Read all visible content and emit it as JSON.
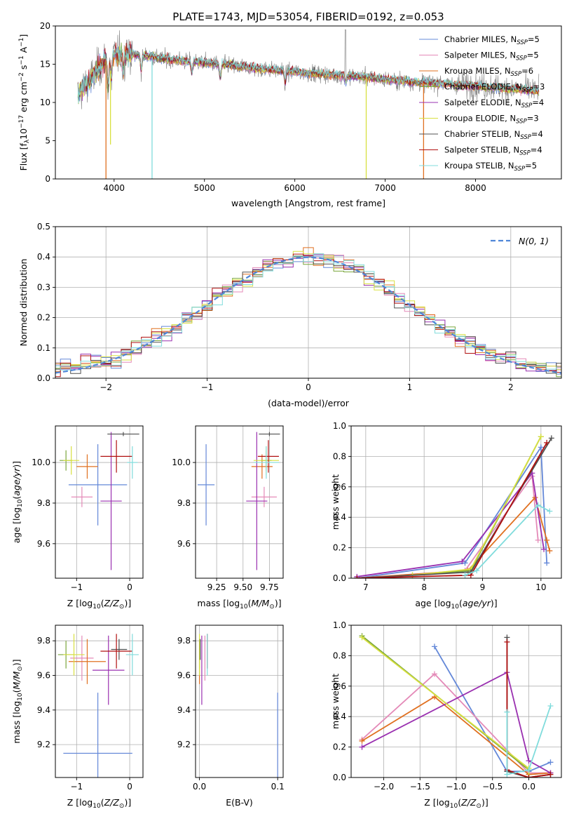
{
  "figure": {
    "title": "PLATE=1743, MJD=53054, FIBERID=0192, z=0.053"
  },
  "colors": {
    "chabrier_miles": "#6488d8",
    "salpeter_miles": "#e48ab8",
    "kroupa_miles": "#e07020",
    "chabrier_elodie": "#7aa63c",
    "salpeter_elodie": "#9a30b0",
    "kroupa_elodie": "#d8e040",
    "chabrier_stelib": "#505050",
    "salpeter_stelib": "#b01010",
    "kroupa_stelib": "#80dcdc",
    "data_spectrum": "#888888",
    "normal_curve": "#4f86d8"
  },
  "legend_spectrum": [
    {
      "text": "Chabrier MILES, N",
      "sub": "SSP",
      "tail": "=5",
      "color_key": "chabrier_miles"
    },
    {
      "text": "Salpeter MILES, N",
      "sub": "SSP",
      "tail": "=5",
      "color_key": "salpeter_miles"
    },
    {
      "text": "Kroupa MILES, N",
      "sub": "SSP",
      "tail": "=6",
      "color_key": "kroupa_miles"
    },
    {
      "text": "Chabrier ELODIE, N",
      "sub": "SSP",
      "tail": "=3",
      "color_key": "chabrier_elodie"
    },
    {
      "text": "Salpeter ELODIE, N",
      "sub": "SSP",
      "tail": "=4",
      "color_key": "salpeter_elodie"
    },
    {
      "text": "Kroupa ELODIE, N",
      "sub": "SSP",
      "tail": "=3",
      "color_key": "kroupa_elodie"
    },
    {
      "text": "Chabrier STELIB, N",
      "sub": "SSP",
      "tail": "=4",
      "color_key": "chabrier_stelib"
    },
    {
      "text": "Salpeter STELIB, N",
      "sub": "SSP",
      "tail": "=4",
      "color_key": "salpeter_stelib"
    },
    {
      "text": "Kroupa STELIB, N",
      "sub": "SSP",
      "tail": "=5",
      "color_key": "kroupa_stelib"
    }
  ],
  "chart_data": [
    {
      "id": "spectrum",
      "type": "line",
      "title": "PLATE=1743, MJD=53054, FIBERID=0192, z=0.053",
      "xlabel": "wavelength [Angstrom, rest frame]",
      "ylabel": "Flux [f_λ 10^-17 erg cm^-2 s^-1 A^-1]",
      "xlim": [
        3350,
        8950
      ],
      "ylim": [
        0,
        20
      ],
      "xticks": [
        4000,
        5000,
        6000,
        7000,
        8000
      ],
      "yticks": [
        0,
        5,
        10,
        15,
        20
      ],
      "legend_position": "upper right",
      "continuum": {
        "x": [
          3600,
          3700,
          3800,
          3900,
          4000,
          4200,
          4400,
          4600,
          4800,
          5000,
          5200,
          5400,
          5600,
          5800,
          6000,
          6200,
          6400,
          6600,
          6800,
          7000,
          7200,
          7400,
          7600,
          7800,
          8000,
          8200,
          8400,
          8600,
          8700
        ],
        "y": [
          11.0,
          12.5,
          14.0,
          15.5,
          16.2,
          16.3,
          16.0,
          15.6,
          15.4,
          15.2,
          15.0,
          14.7,
          14.4,
          14.2,
          14.0,
          13.8,
          13.6,
          13.5,
          13.3,
          13.0,
          12.8,
          12.6,
          12.5,
          12.3,
          12.2,
          12.0,
          11.8,
          11.6,
          11.5
        ]
      },
      "absorption_features": [
        {
          "x": 3934,
          "depth": 4.0
        },
        {
          "x": 3969,
          "depth": 3.0
        },
        {
          "x": 4102,
          "depth": 2.0
        },
        {
          "x": 4300,
          "depth": 2.0
        },
        {
          "x": 4861,
          "depth": 1.5
        },
        {
          "x": 5175,
          "depth": 2.0
        },
        {
          "x": 5893,
          "depth": 1.5
        },
        {
          "x": 6563,
          "depth": 1.0
        }
      ],
      "glitches": [
        {
          "x": 3910,
          "to": 0,
          "series": "kroupa_miles"
        },
        {
          "x": 3960,
          "to": 4.5,
          "series": "kroupa_elodie"
        },
        {
          "x": 4420,
          "to": 0,
          "series": "kroupa_stelib"
        },
        {
          "x": 6790,
          "to": 0,
          "series": "kroupa_elodie"
        },
        {
          "x": 7425,
          "to": 0,
          "series": "kroupa_miles"
        }
      ]
    },
    {
      "id": "residuals",
      "type": "step",
      "xlabel": "(data-model)/error",
      "ylabel": "Normed distribution",
      "xlim": [
        -2.5,
        2.5
      ],
      "ylim": [
        0,
        0.5
      ],
      "xticks": [
        -2,
        -1,
        0,
        1,
        2
      ],
      "xtick_labels": [
        "−2",
        "−1",
        "0",
        "1",
        "2"
      ],
      "yticks": [
        0.0,
        0.1,
        0.2,
        0.3,
        0.4,
        0.5
      ],
      "ytick_labels": [
        "0.0",
        "0.1",
        "0.2",
        "0.3",
        "0.4",
        "0.5"
      ],
      "bin_width": 0.1,
      "legend": [
        {
          "label": "N(0,1)",
          "color_key": "normal_curve",
          "style": "dashed"
        }
      ],
      "gaussian": {
        "mean": 0,
        "sigma": 1
      }
    },
    {
      "id": "age_vs_Z",
      "type": "errorbar",
      "xlabel": "Z [log10(Z/Z☉)]",
      "ylabel": "age [log10(age/yr)]",
      "xlim": [
        -1.4,
        0.25
      ],
      "ylim": [
        9.43,
        10.18
      ],
      "xticks": [
        -1,
        0
      ],
      "xtick_labels": [
        "−1",
        "0"
      ],
      "yticks": [
        9.6,
        9.8,
        10.0
      ],
      "ytick_labels": [
        "9.6",
        "9.8",
        "10.0"
      ],
      "points": [
        {
          "series": "chabrier_miles",
          "x": -0.6,
          "xerr": 0.55,
          "y": 9.89,
          "yerr": 0.2
        },
        {
          "series": "salpeter_miles",
          "x": -0.9,
          "xerr": 0.2,
          "y": 9.83,
          "yerr": 0.05
        },
        {
          "series": "kroupa_miles",
          "x": -0.8,
          "xerr": 0.2,
          "y": 9.98,
          "yerr": 0.06
        },
        {
          "series": "chabrier_elodie",
          "x": -1.2,
          "xerr": 0.12,
          "y": 10.01,
          "yerr": 0.05
        },
        {
          "series": "salpeter_elodie",
          "x": -0.35,
          "xerr": 0.2,
          "y": 9.81,
          "yerr": 0.34
        },
        {
          "series": "kroupa_elodie",
          "x": -1.1,
          "xerr": 0.15,
          "y": 10.01,
          "yerr": 0.07
        },
        {
          "series": "chabrier_stelib",
          "x": -0.12,
          "xerr": 0.3,
          "y": 10.14,
          "yerr": 0.01
        },
        {
          "series": "salpeter_stelib",
          "x": -0.25,
          "xerr": 0.3,
          "y": 10.03,
          "yerr": 0.08
        },
        {
          "series": "kroupa_stelib",
          "x": 0.05,
          "xerr": 0.1,
          "y": 10.0,
          "yerr": 0.08
        }
      ]
    },
    {
      "id": "age_vs_mass",
      "type": "errorbar",
      "xlabel": "mass [log10(M/M☉)]",
      "ylabel": "",
      "xlim": [
        9.05,
        9.88
      ],
      "ylim": [
        9.43,
        10.18
      ],
      "xticks": [
        9.25,
        9.5,
        9.75
      ],
      "xtick_labels": [
        "9.25",
        "9.50",
        "9.75"
      ],
      "yticks": [
        9.6,
        9.8,
        10.0
      ],
      "ytick_labels": [
        "9.6",
        "9.8",
        "10.0"
      ],
      "points": [
        {
          "series": "chabrier_miles",
          "x": 9.15,
          "xerr": 0.08,
          "y": 9.89,
          "yerr": 0.2
        },
        {
          "series": "salpeter_miles",
          "x": 9.7,
          "xerr": 0.12,
          "y": 9.83,
          "yerr": 0.05
        },
        {
          "series": "kroupa_miles",
          "x": 9.68,
          "xerr": 0.1,
          "y": 9.98,
          "yerr": 0.06
        },
        {
          "series": "chabrier_elodie",
          "x": 9.72,
          "xerr": 0.05,
          "y": 10.01,
          "yerr": 0.05
        },
        {
          "series": "salpeter_elodie",
          "x": 9.63,
          "xerr": 0.1,
          "y": 9.81,
          "yerr": 0.34
        },
        {
          "series": "kroupa_elodie",
          "x": 9.72,
          "xerr": 0.12,
          "y": 10.01,
          "yerr": 0.07
        },
        {
          "series": "chabrier_stelib",
          "x": 9.75,
          "xerr": 0.1,
          "y": 10.14,
          "yerr": 0.01
        },
        {
          "series": "salpeter_stelib",
          "x": 9.74,
          "xerr": 0.1,
          "y": 10.03,
          "yerr": 0.08
        },
        {
          "series": "kroupa_stelib",
          "x": 9.72,
          "xerr": 0.12,
          "y": 10.0,
          "yerr": 0.08
        }
      ]
    },
    {
      "id": "mass_weight_vs_age",
      "type": "line",
      "xlabel": "age [log10(age/yr)]",
      "ylabel": "mass weight",
      "xlim": [
        6.75,
        10.35
      ],
      "ylim": [
        0,
        1
      ],
      "xticks": [
        7,
        8,
        9,
        10
      ],
      "xtick_labels": [
        "7",
        "8",
        "9",
        "10"
      ],
      "yticks": [
        0.0,
        0.2,
        0.4,
        0.6,
        0.8,
        1.0
      ],
      "ytick_labels": [
        "0.0",
        "0.2",
        "0.4",
        "0.6",
        "0.8",
        "1.0"
      ],
      "series": [
        {
          "series": "chabrier_miles",
          "x": [
            6.85,
            8.7,
            10.0,
            10.1
          ],
          "y": [
            0.0,
            0.1,
            0.86,
            0.1
          ]
        },
        {
          "series": "salpeter_miles",
          "x": [
            6.85,
            8.7,
            9.85,
            9.95
          ],
          "y": [
            0.0,
            0.05,
            0.67,
            0.25
          ]
        },
        {
          "series": "kroupa_miles",
          "x": [
            6.85,
            8.75,
            9.9,
            10.1,
            10.15
          ],
          "y": [
            0.0,
            0.05,
            0.53,
            0.25,
            0.18
          ]
        },
        {
          "series": "chabrier_elodie",
          "x": [
            7.8,
            8.8,
            10.0
          ],
          "y": [
            0.02,
            0.05,
            0.93
          ]
        },
        {
          "series": "salpeter_elodie",
          "x": [
            6.85,
            8.65,
            9.85,
            10.05
          ],
          "y": [
            0.01,
            0.11,
            0.69,
            0.19
          ]
        },
        {
          "series": "kroupa_elodie",
          "x": [
            7.8,
            8.8,
            10.0
          ],
          "y": [
            0.02,
            0.06,
            0.93
          ]
        },
        {
          "series": "chabrier_stelib",
          "x": [
            6.85,
            8.8,
            10.18
          ],
          "y": [
            0.0,
            0.04,
            0.92
          ]
        },
        {
          "series": "salpeter_stelib",
          "x": [
            6.85,
            8.8,
            10.1
          ],
          "y": [
            0.0,
            0.02,
            0.89
          ]
        },
        {
          "series": "kroupa_stelib",
          "x": [
            8.7,
            8.9,
            9.95,
            10.15
          ],
          "y": [
            0.02,
            0.05,
            0.48,
            0.44
          ]
        }
      ]
    },
    {
      "id": "mass_vs_Z",
      "type": "errorbar",
      "xlabel": "Z [log10(Z/Z☉)]",
      "ylabel": "mass [log10(M/M☉)]",
      "xlim": [
        -1.4,
        0.25
      ],
      "ylim": [
        9.01,
        9.89
      ],
      "xticks": [
        -1,
        0
      ],
      "xtick_labels": [
        "−1",
        "0"
      ],
      "yticks": [
        9.2,
        9.4,
        9.6,
        9.8
      ],
      "ytick_labels": [
        "9.2",
        "9.4",
        "9.6",
        "9.8"
      ],
      "points": [
        {
          "series": "chabrier_miles",
          "x": -0.6,
          "xerr": 0.65,
          "y": 9.15,
          "yerr": 0.35
        },
        {
          "series": "salpeter_miles",
          "x": -0.9,
          "xerr": 0.22,
          "y": 9.7,
          "yerr": 0.13
        },
        {
          "series": "kroupa_miles",
          "x": -0.8,
          "xerr": 0.35,
          "y": 9.68,
          "yerr": 0.13
        },
        {
          "series": "chabrier_elodie",
          "x": -1.2,
          "xerr": 0.15,
          "y": 9.72,
          "yerr": 0.08
        },
        {
          "series": "salpeter_elodie",
          "x": -0.4,
          "xerr": 0.3,
          "y": 9.63,
          "yerr": 0.2
        },
        {
          "series": "kroupa_elodie",
          "x": -1.05,
          "xerr": 0.2,
          "y": 9.72,
          "yerr": 0.12
        },
        {
          "series": "chabrier_stelib",
          "x": -0.2,
          "xerr": 0.15,
          "y": 9.75,
          "yerr": 0.06
        },
        {
          "series": "salpeter_stelib",
          "x": -0.25,
          "xerr": 0.3,
          "y": 9.74,
          "yerr": 0.1
        },
        {
          "series": "kroupa_stelib",
          "x": 0.05,
          "xerr": 0.12,
          "y": 9.72,
          "yerr": 0.12
        }
      ]
    },
    {
      "id": "mass_vs_ebv",
      "type": "errorbar",
      "xlabel": "E(B-V)",
      "ylabel": "",
      "xlim": [
        -0.005,
        0.107
      ],
      "ylim": [
        9.01,
        9.89
      ],
      "xticks": [
        0.0,
        0.1
      ],
      "xtick_labels": [
        "0.0",
        "0.1"
      ],
      "yticks": [
        9.2,
        9.4,
        9.6,
        9.8
      ],
      "ytick_labels": [
        "9.2",
        "9.4",
        "9.6",
        "9.8"
      ],
      "points": [
        {
          "series": "chabrier_miles",
          "x": 0.1,
          "xerr": 0,
          "y": 9.15,
          "yerr": 0.35
        },
        {
          "series": "salpeter_miles",
          "x": 0.007,
          "xerr": 0,
          "y": 9.7,
          "yerr": 0.13
        },
        {
          "series": "kroupa_miles",
          "x": 0.0,
          "xerr": 0,
          "y": 9.68,
          "yerr": 0.13
        },
        {
          "series": "chabrier_elodie",
          "x": 0.0,
          "xerr": 0,
          "y": 9.72,
          "yerr": 0.08
        },
        {
          "series": "salpeter_elodie",
          "x": 0.003,
          "xerr": 0,
          "y": 9.63,
          "yerr": 0.2
        },
        {
          "series": "kroupa_elodie",
          "x": 0.0,
          "xerr": 0,
          "y": 9.72,
          "yerr": 0.12
        },
        {
          "series": "chabrier_stelib",
          "x": 0.001,
          "xerr": 0,
          "y": 9.75,
          "yerr": 0.06
        },
        {
          "series": "salpeter_stelib",
          "x": 0.01,
          "xerr": 0,
          "y": 9.74,
          "yerr": 0.1
        },
        {
          "series": "kroupa_stelib",
          "x": 0.01,
          "xerr": 0,
          "y": 9.72,
          "yerr": 0.12
        }
      ]
    },
    {
      "id": "mass_weight_vs_Z",
      "type": "line",
      "xlabel": "Z [log10(Z/Z☉)]",
      "ylabel": "mass weight",
      "xlim": [
        -2.45,
        0.45
      ],
      "ylim": [
        0,
        1
      ],
      "xticks": [
        -2.0,
        -1.5,
        -1.0,
        -0.5,
        0.0
      ],
      "xtick_labels": [
        "−2.0",
        "−1.5",
        "−1.0",
        "−0.5",
        "0.0"
      ],
      "yticks": [
        0.0,
        0.2,
        0.4,
        0.6,
        0.8,
        1.0
      ],
      "ytick_labels": [
        "0.0",
        "0.2",
        "0.4",
        "0.6",
        "0.8",
        "1.0"
      ],
      "series": [
        {
          "series": "chabrier_miles",
          "x": [
            -1.3,
            -0.3,
            0.0,
            0.3
          ],
          "y": [
            0.86,
            0.04,
            0.04,
            0.1
          ]
        },
        {
          "series": "salpeter_miles",
          "x": [
            -2.3,
            -1.3,
            0.0,
            0.3
          ],
          "y": [
            0.25,
            0.68,
            0.03,
            0.03
          ]
        },
        {
          "series": "kroupa_miles",
          "x": [
            -2.3,
            -1.3,
            0.0,
            0.3
          ],
          "y": [
            0.24,
            0.53,
            0.02,
            0.03
          ]
        },
        {
          "series": "chabrier_elodie",
          "x": [
            -2.3,
            0.0,
            0.0
          ],
          "y": [
            0.93,
            0.05,
            0.0
          ]
        },
        {
          "series": "salpeter_elodie",
          "x": [
            -2.3,
            -0.3,
            0.0,
            0.3
          ],
          "y": [
            0.2,
            0.69,
            0.11,
            0.03
          ]
        },
        {
          "series": "kroupa_elodie",
          "x": [
            -2.3,
            0.0,
            0.0
          ],
          "y": [
            0.92,
            0.06,
            0.0
          ]
        },
        {
          "series": "chabrier_stelib",
          "x": [
            -0.3,
            -0.3,
            0.0,
            0.3
          ],
          "y": [
            0.92,
            0.04,
            0.0,
            0.02
          ]
        },
        {
          "series": "salpeter_stelib",
          "x": [
            -0.3,
            -0.3,
            0.0,
            0.3
          ],
          "y": [
            0.89,
            0.05,
            0.0,
            0.02
          ]
        },
        {
          "series": "kroupa_stelib",
          "x": [
            -0.3,
            -0.3,
            0.0,
            0.3
          ],
          "y": [
            0.43,
            0.02,
            0.05,
            0.47
          ]
        }
      ]
    }
  ]
}
